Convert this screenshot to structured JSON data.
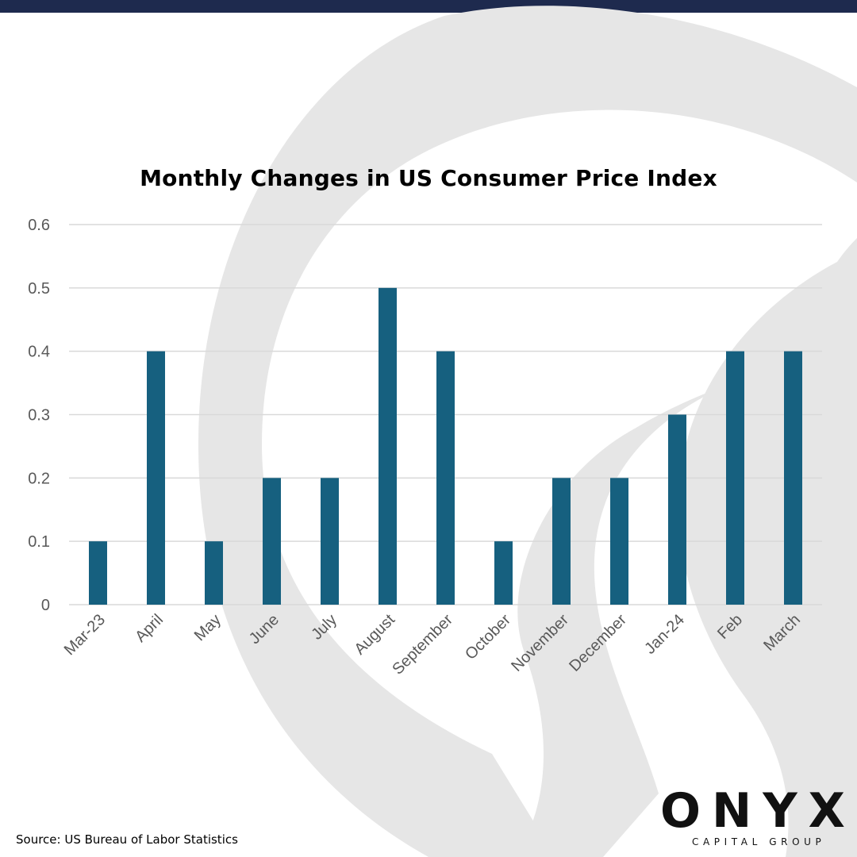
{
  "chart_data": {
    "type": "bar",
    "title": "Monthly Changes in US Consumer Price Index",
    "categories": [
      "Mar-23",
      "April",
      "May",
      "June",
      "July",
      "August",
      "September",
      "October",
      "November",
      "December",
      "Jan-24",
      "Feb",
      "March"
    ],
    "values": [
      0.1,
      0.4,
      0.1,
      0.2,
      0.2,
      0.5,
      0.4,
      0.1,
      0.2,
      0.2,
      0.3,
      0.4,
      0.4
    ],
    "yticks": [
      "0",
      "0.1",
      "0.2",
      "0.3",
      "0.4",
      "0.5",
      "0.6"
    ],
    "ylim": [
      0,
      0.6
    ],
    "xlabel": "",
    "ylabel": "",
    "grid": true,
    "bar_color": "#16607f"
  },
  "footer": {
    "source": "Source: US Bureau of Labor Statistics"
  },
  "logo": {
    "word": "ONYX",
    "tagline": "CAPITAL GROUP"
  },
  "colors": {
    "top_bar": "#1e2a4e",
    "watermark": "#e6e6e6"
  }
}
